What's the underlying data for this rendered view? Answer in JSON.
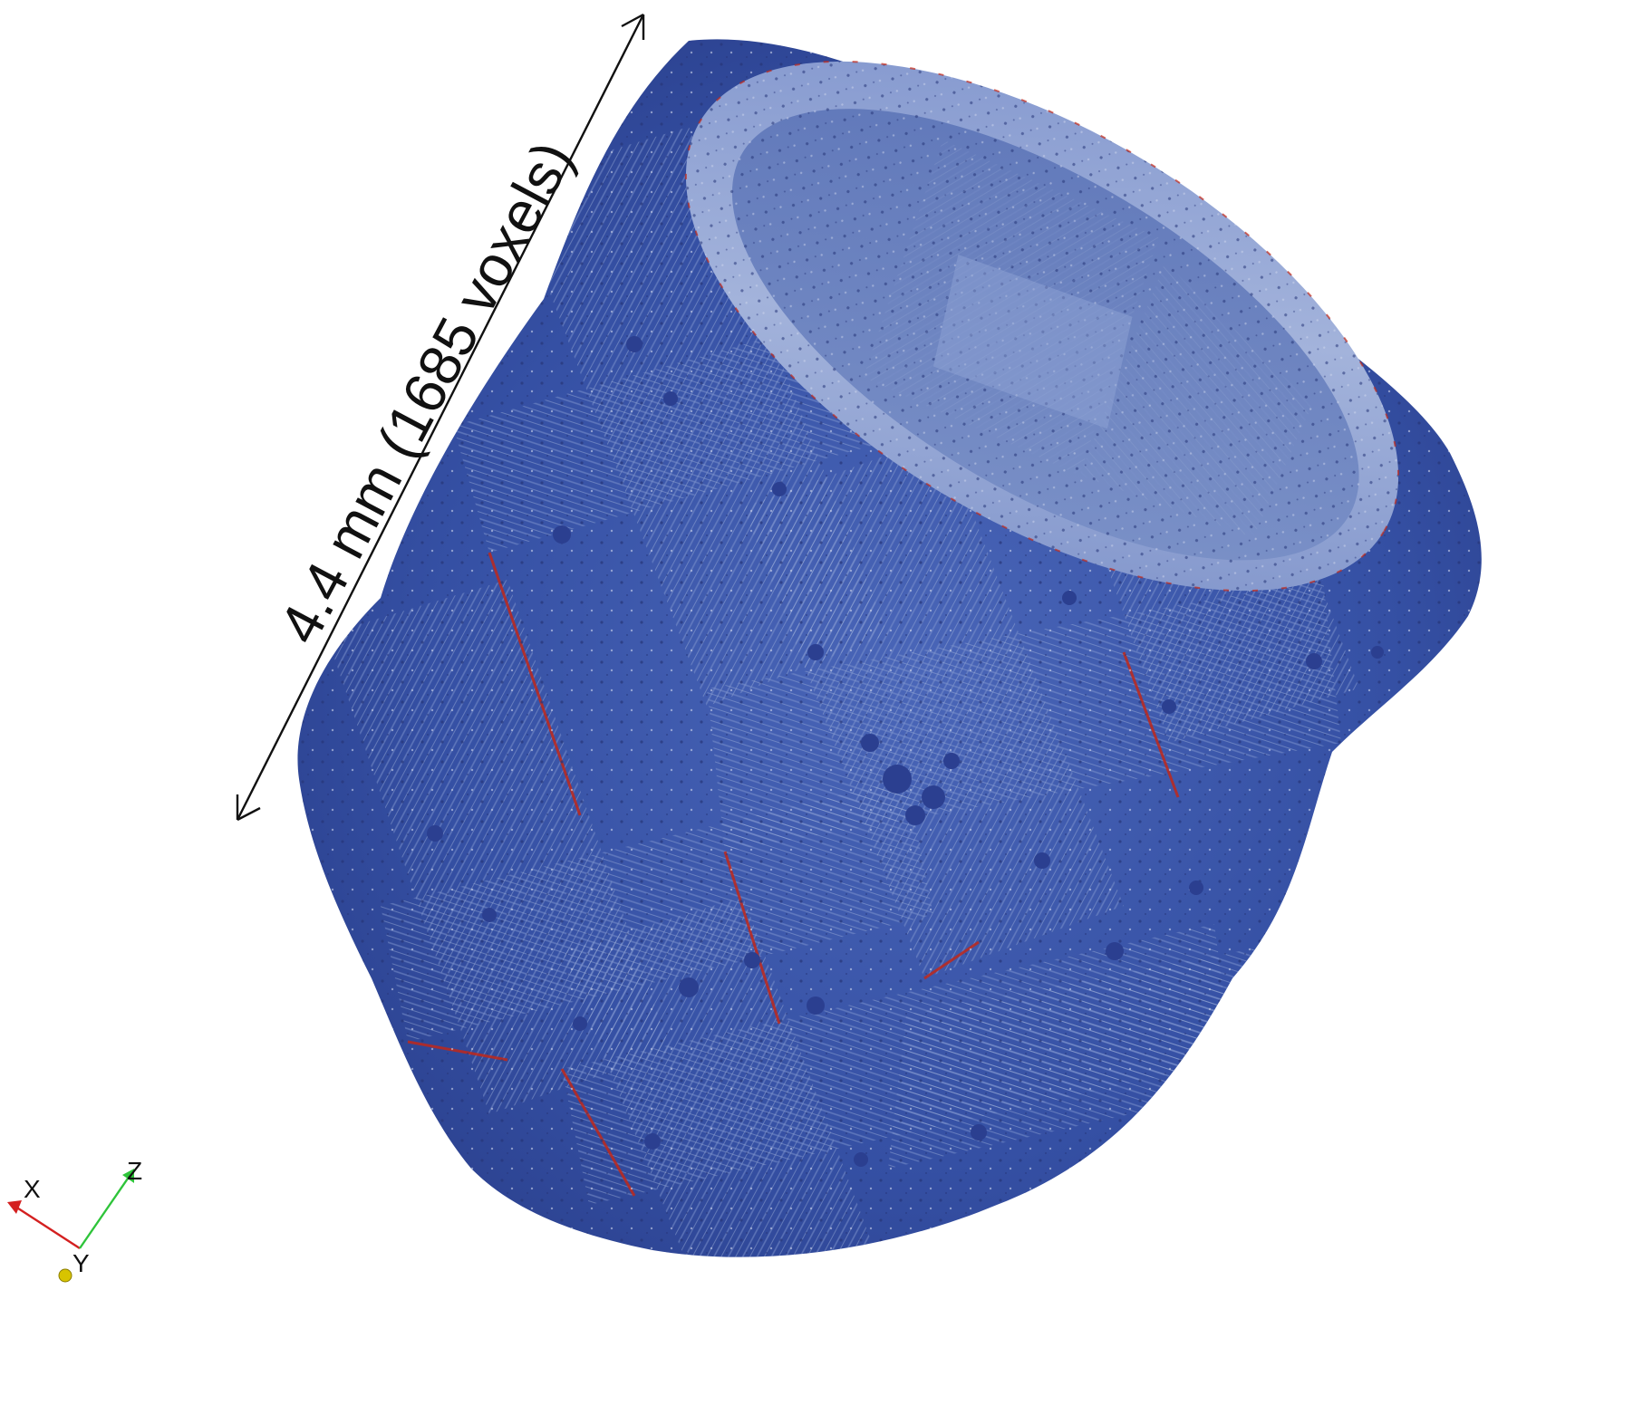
{
  "measurement": {
    "label": "4.4 mm (1685 voxels)"
  },
  "orientation_axes": {
    "x_label": "X",
    "y_label": "Y",
    "z_label": "Z",
    "x_color": "#d42020",
    "y_color": "#d8c400",
    "z_color": "#2ec43a"
  },
  "object": {
    "base_color": "#3a56a8",
    "light_color": "#8fa3d2",
    "highlight_color": "#c9d2e8",
    "edge_color": "#c0281a"
  }
}
